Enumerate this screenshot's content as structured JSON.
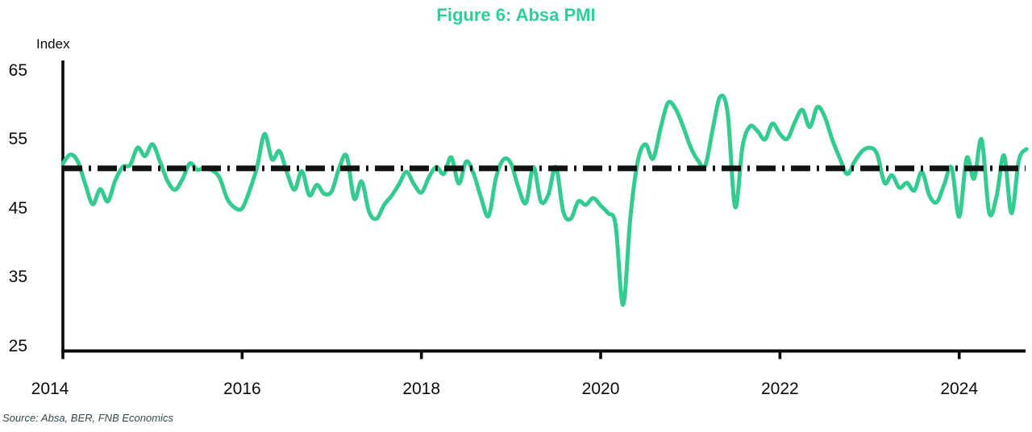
{
  "title": "Figure 6: Absa PMI",
  "source_note": "Source: Absa, BER, FNB Economics",
  "colors": {
    "line": "#34cb91",
    "title": "#2fcf95",
    "axis": "#0a0a0a",
    "reference_line": "#111111",
    "background": "#ffffff"
  },
  "chart_data": {
    "type": "line",
    "title": "Figure 6: Absa PMI",
    "ylabel": "Index",
    "xlabel": "",
    "ylim": [
      25,
      65
    ],
    "yticks": [
      25,
      35,
      45,
      55,
      65
    ],
    "xticks": [
      2014,
      2016,
      2018,
      2020,
      2022,
      2024
    ],
    "grid": false,
    "legend": "none",
    "frequency": "monthly",
    "start": "2014-01",
    "end": "2024-10",
    "reference_line": {
      "value": 50.8,
      "style": "long-dash-dot",
      "color": "#111111"
    },
    "series": [
      {
        "name": "Absa PMI",
        "values": [
          51.5,
          52.8,
          51.8,
          48.5,
          45.6,
          47.8,
          46.0,
          49.0,
          51.0,
          51.3,
          53.8,
          52.6,
          54.3,
          51.8,
          49.0,
          47.7,
          49.2,
          51.5,
          50.6,
          50.9,
          50.5,
          49.4,
          46.4,
          45.1,
          45.0,
          47.6,
          51.0,
          55.8,
          52.1,
          53.3,
          50.2,
          47.7,
          50.4,
          46.9,
          48.4,
          47.1,
          47.5,
          50.9,
          52.6,
          46.4,
          48.9,
          44.5,
          43.5,
          45.5,
          46.8,
          48.5,
          50.3,
          48.5,
          47.3,
          49.5,
          51.0,
          50.0,
          52.4,
          48.6,
          51.8,
          50.0,
          46.5,
          43.9,
          49.5,
          52.1,
          51.5,
          48.0,
          45.8,
          51.0,
          46.0,
          47.0,
          51.0,
          44.5,
          43.5,
          46.0,
          45.5,
          46.5,
          45.4,
          44.3,
          42.6,
          31.0,
          44.0,
          52.0,
          54.3,
          52.2,
          56.5,
          60.3,
          59.5,
          57.0,
          54.0,
          52.0,
          51.2,
          56.5,
          61.2,
          58.8,
          45.2,
          54.0,
          56.9,
          56.2,
          55.0,
          57.3,
          55.8,
          55.1,
          57.5,
          59.3,
          56.8,
          59.7,
          58.3,
          55.0,
          52.3,
          50.0,
          51.8,
          53.3,
          53.8,
          52.9,
          48.7,
          49.8,
          48.0,
          48.7,
          47.6,
          50.3,
          46.9,
          45.9,
          48.5,
          50.9,
          43.8,
          52.3,
          49.3,
          55.0,
          44.4,
          46.7,
          52.7,
          44.3,
          52.0,
          53.6
        ]
      }
    ]
  }
}
